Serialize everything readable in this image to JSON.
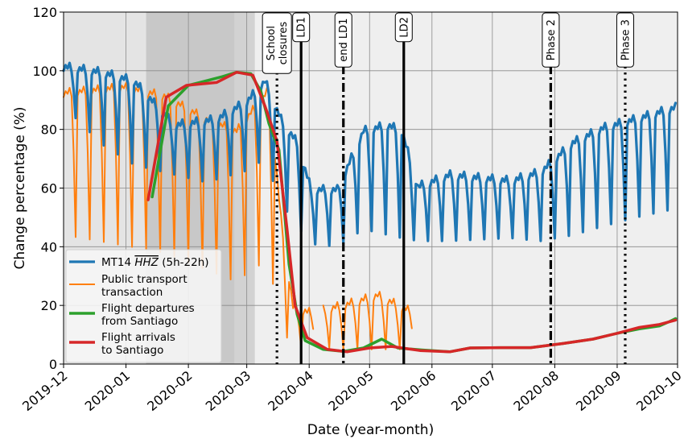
{
  "chart_data": {
    "type": "line",
    "xlabel": "Date (year-month)",
    "ylabel": "Change percentage (%)",
    "ylim": [
      0,
      120
    ],
    "xlim": [
      "2019-12-01",
      "2020-10-01"
    ],
    "y_ticks": [
      0,
      20,
      40,
      60,
      80,
      100,
      120
    ],
    "x_ticks": [
      "2019-12",
      "2020-01",
      "2020-02",
      "2020-03",
      "2020-04",
      "2020-05",
      "2020-06",
      "2020-07",
      "2020-08",
      "2020-09",
      "2020-10"
    ],
    "grid": true,
    "legend_position": "bottom-left",
    "shaded_regions": [
      {
        "start": "2019-12-01",
        "end": "2020-01-11",
        "color": "#e4e4e4"
      },
      {
        "start": "2020-01-11",
        "end": "2020-02-24",
        "color": "#c8c8c8"
      },
      {
        "start": "2020-02-24",
        "end": "2020-03-05",
        "color": "#d2d2d2"
      }
    ],
    "events": [
      {
        "date": "2020-03-16",
        "label": [
          "School",
          "closures"
        ],
        "style": "dotted"
      },
      {
        "date": "2020-03-28",
        "label": [
          "LD1"
        ],
        "style": "solid"
      },
      {
        "date": "2020-04-18",
        "label": [
          "end LD1"
        ],
        "style": "dashdot"
      },
      {
        "date": "2020-05-18",
        "label": [
          "LD2"
        ],
        "style": "solid"
      },
      {
        "date": "2020-07-30",
        "label": [
          "Phase 2"
        ],
        "style": "dashdot"
      },
      {
        "date": "2020-09-05",
        "label": [
          "Phase 3"
        ],
        "style": "dotted"
      }
    ],
    "series": [
      {
        "name": "MT14 $\\overline{HHZ}$ (5h-22h)",
        "legend_main": "MT14 ",
        "legend_overline": "HHZ",
        "legend_suffix": " (5h-22h)",
        "color": "#1f77b4",
        "width": 3.2,
        "pattern": "weekly",
        "x_start": "2019-12-01",
        "x_end": "2020-09-30",
        "phase": 0,
        "weekday_levels": [
          [
            "2019-12-01",
            100
          ],
          [
            "2019-12-20",
            98
          ],
          [
            "2020-01-05",
            95
          ],
          [
            "2020-01-25",
            80
          ],
          [
            "2020-02-15",
            82
          ],
          [
            "2020-03-01",
            88
          ],
          [
            "2020-03-10",
            95
          ],
          [
            "2020-03-18",
            82
          ],
          [
            "2020-03-26",
            74
          ],
          [
            "2020-04-02",
            58
          ],
          [
            "2020-04-15",
            58
          ],
          [
            "2020-04-28",
            78
          ],
          [
            "2020-05-10",
            80
          ],
          [
            "2020-05-17",
            78
          ],
          [
            "2020-05-25",
            59
          ],
          [
            "2020-06-10",
            63
          ],
          [
            "2020-06-25",
            62
          ],
          [
            "2020-07-10",
            61
          ],
          [
            "2020-07-25",
            64
          ],
          [
            "2020-08-10",
            74
          ],
          [
            "2020-08-25",
            79
          ],
          [
            "2020-09-10",
            82
          ],
          [
            "2020-09-30",
            86
          ]
        ],
        "weekend_levels": [
          [
            "2019-12-01",
            88
          ],
          [
            "2019-12-20",
            75
          ],
          [
            "2020-01-05",
            68
          ],
          [
            "2020-02-10",
            62
          ],
          [
            "2020-03-01",
            66
          ],
          [
            "2020-03-10",
            70
          ],
          [
            "2020-03-18",
            55
          ],
          [
            "2020-03-26",
            47
          ],
          [
            "2020-04-02",
            41
          ],
          [
            "2020-04-15",
            40
          ],
          [
            "2020-04-28",
            46
          ],
          [
            "2020-05-17",
            43
          ],
          [
            "2020-05-25",
            42
          ],
          [
            "2020-06-10",
            42
          ],
          [
            "2020-07-10",
            43
          ],
          [
            "2020-07-25",
            42
          ],
          [
            "2020-08-10",
            44
          ],
          [
            "2020-08-25",
            47
          ],
          [
            "2020-09-10",
            50
          ],
          [
            "2020-09-30",
            53
          ]
        ]
      },
      {
        "name": "Public transport transaction",
        "legend_lines": [
          "Public transport",
          "transaction"
        ],
        "color": "#ff7f0e",
        "width": 2,
        "pattern": "weekly",
        "x_start": "2019-12-01",
        "x_end": "2020-05-22",
        "gap": [
          "2020-04-03",
          "2020-04-08"
        ],
        "phase": 0,
        "weekday_levels": [
          [
            "2019-12-01",
            91
          ],
          [
            "2019-12-31",
            93
          ],
          [
            "2020-01-20",
            90
          ],
          [
            "2020-02-10",
            82
          ],
          [
            "2020-02-25",
            78
          ],
          [
            "2020-03-05",
            86
          ],
          [
            "2020-03-12",
            92
          ],
          [
            "2020-03-18",
            48
          ],
          [
            "2020-03-24",
            18
          ],
          [
            "2020-04-02",
            16
          ],
          [
            "2020-04-20",
            19
          ],
          [
            "2020-05-05",
            22
          ],
          [
            "2020-05-20",
            17
          ]
        ],
        "weekend_levels": [
          [
            "2019-12-01",
            44
          ],
          [
            "2020-01-20",
            38
          ],
          [
            "2020-02-25",
            28
          ],
          [
            "2020-03-05",
            33
          ],
          [
            "2020-03-12",
            35
          ],
          [
            "2020-03-18",
            12
          ],
          [
            "2020-03-24",
            6
          ],
          [
            "2020-04-20",
            5
          ],
          [
            "2020-05-20",
            5
          ]
        ]
      },
      {
        "name": "Flight departures from Santiago",
        "legend_lines": [
          "Flight departures",
          "from Santiago"
        ],
        "color": "#2ca02c",
        "width": 3.5,
        "pattern": "points",
        "points": [
          [
            "2020-01-14",
            57
          ],
          [
            "2020-01-22",
            88
          ],
          [
            "2020-02-01",
            95
          ],
          [
            "2020-02-18",
            98
          ],
          [
            "2020-02-25",
            99.5
          ],
          [
            "2020-03-03",
            99
          ],
          [
            "2020-03-08",
            93
          ],
          [
            "2020-03-12",
            82
          ],
          [
            "2020-03-17",
            73
          ],
          [
            "2020-03-22",
            34
          ],
          [
            "2020-03-26",
            17
          ],
          [
            "2020-03-30",
            8
          ],
          [
            "2020-04-08",
            5
          ],
          [
            "2020-04-18",
            4.3
          ],
          [
            "2020-04-28",
            5.5
          ],
          [
            "2020-05-07",
            8.5
          ],
          [
            "2020-05-15",
            5.5
          ],
          [
            "2020-05-27",
            4.8
          ],
          [
            "2020-06-10",
            4.2
          ],
          [
            "2020-06-20",
            5.5
          ],
          [
            "2020-07-05",
            5.6
          ],
          [
            "2020-07-20",
            5.6
          ],
          [
            "2020-08-05",
            7
          ],
          [
            "2020-08-20",
            8.5
          ],
          [
            "2020-09-01",
            10.5
          ],
          [
            "2020-09-12",
            12
          ],
          [
            "2020-09-22",
            13
          ],
          [
            "2020-09-27",
            14.5
          ],
          [
            "2020-09-30",
            15.5
          ]
        ]
      },
      {
        "name": "Flight arrivals to Santiago",
        "legend_lines": [
          "Flight arrivals",
          "to Santiago"
        ],
        "color": "#d62728",
        "width": 3.5,
        "pattern": "points",
        "points": [
          [
            "2020-01-12",
            56
          ],
          [
            "2020-01-21",
            91
          ],
          [
            "2020-01-31",
            95
          ],
          [
            "2020-02-15",
            96
          ],
          [
            "2020-02-25",
            99.5
          ],
          [
            "2020-03-04",
            98.5
          ],
          [
            "2020-03-10",
            88
          ],
          [
            "2020-03-16",
            76
          ],
          [
            "2020-03-21",
            46
          ],
          [
            "2020-03-25",
            20
          ],
          [
            "2020-03-31",
            9
          ],
          [
            "2020-04-10",
            5
          ],
          [
            "2020-04-20",
            4.2
          ],
          [
            "2020-05-01",
            5.5
          ],
          [
            "2020-05-12",
            6
          ],
          [
            "2020-05-26",
            4.6
          ],
          [
            "2020-06-10",
            4.2
          ],
          [
            "2020-06-20",
            5.5
          ],
          [
            "2020-07-05",
            5.6
          ],
          [
            "2020-07-20",
            5.6
          ],
          [
            "2020-08-05",
            7
          ],
          [
            "2020-08-20",
            8.5
          ],
          [
            "2020-09-01",
            10.5
          ],
          [
            "2020-09-12",
            12.5
          ],
          [
            "2020-09-22",
            13.5
          ],
          [
            "2020-09-30",
            15
          ]
        ]
      }
    ]
  }
}
